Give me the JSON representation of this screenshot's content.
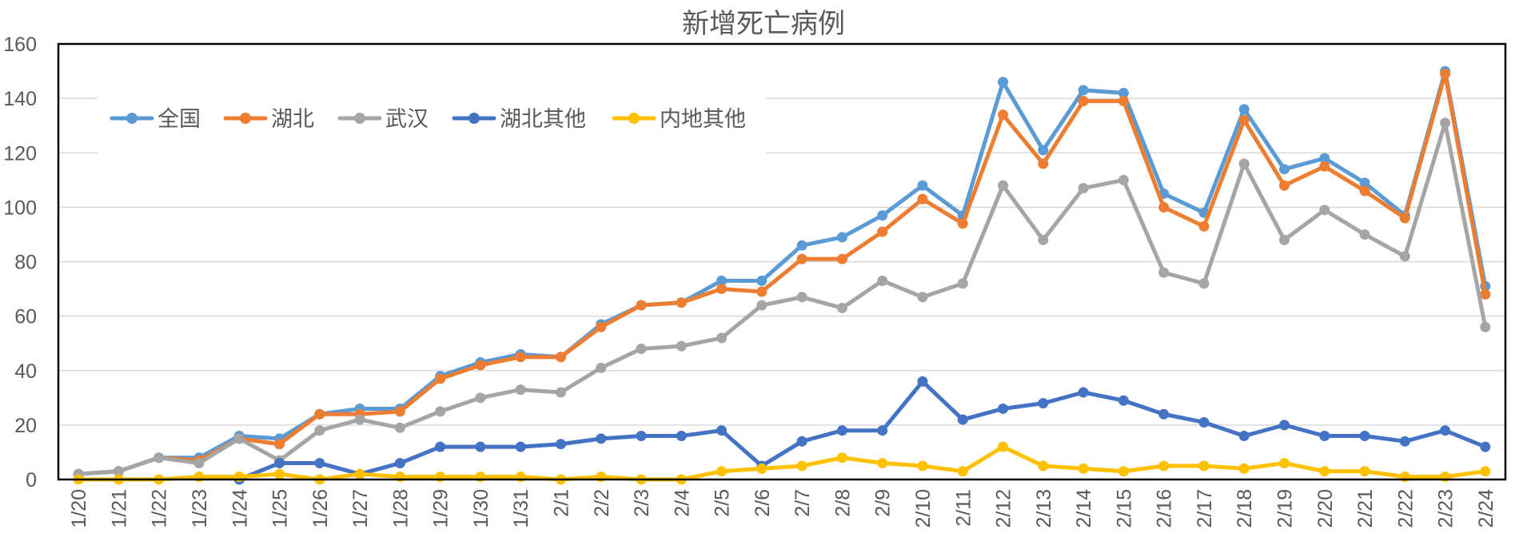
{
  "chart_data": {
    "type": "line",
    "title": "新增死亡病例",
    "xlabel": "",
    "ylabel": "",
    "ylim": [
      0,
      160
    ],
    "yticks": [
      0,
      20,
      40,
      60,
      80,
      100,
      120,
      140,
      160
    ],
    "grid": true,
    "legend_position": "top-left",
    "categories": [
      "1/20",
      "1/21",
      "1/22",
      "1/23",
      "1/24",
      "1/25",
      "1/26",
      "1/27",
      "1/28",
      "1/29",
      "1/30",
      "1/31",
      "2/1",
      "2/2",
      "2/3",
      "2/4",
      "2/5",
      "2/6",
      "2/7",
      "2/8",
      "2/9",
      "2/10",
      "2/11",
      "2/12",
      "2/13",
      "2/14",
      "2/15",
      "2/16",
      "2/17",
      "2/18",
      "2/19",
      "2/20",
      "2/21",
      "2/22",
      "2/23",
      "2/24"
    ],
    "series": [
      {
        "name": "全国",
        "color": "#5b9bd5",
        "values": [
          2,
          3,
          8,
          8,
          16,
          15,
          24,
          26,
          26,
          38,
          43,
          46,
          45,
          57,
          64,
          65,
          73,
          73,
          86,
          89,
          97,
          108,
          97,
          146,
          121,
          143,
          142,
          105,
          98,
          136,
          114,
          118,
          109,
          97,
          150,
          71
        ]
      },
      {
        "name": "湖北",
        "color": "#ed7d31",
        "values": [
          2,
          3,
          8,
          7,
          15,
          13,
          24,
          24,
          25,
          37,
          42,
          45,
          45,
          56,
          64,
          65,
          70,
          69,
          81,
          81,
          91,
          103,
          94,
          134,
          116,
          139,
          139,
          100,
          93,
          132,
          108,
          115,
          106,
          96,
          149,
          68
        ]
      },
      {
        "name": "武汉",
        "color": "#a5a5a5",
        "values": [
          2,
          3,
          8,
          6,
          15,
          7,
          18,
          22,
          19,
          25,
          30,
          33,
          32,
          41,
          48,
          49,
          52,
          64,
          67,
          63,
          73,
          67,
          72,
          108,
          88,
          107,
          110,
          76,
          72,
          116,
          88,
          99,
          90,
          82,
          131,
          56
        ]
      },
      {
        "name": "湖北其他",
        "color": "#4472c4",
        "values": [
          null,
          null,
          null,
          null,
          0,
          6,
          6,
          2,
          6,
          12,
          12,
          12,
          13,
          15,
          16,
          16,
          18,
          5,
          14,
          18,
          18,
          36,
          22,
          26,
          28,
          32,
          29,
          24,
          21,
          16,
          20,
          16,
          16,
          14,
          18,
          12
        ]
      },
      {
        "name": "内地其他",
        "color": "#ffc000",
        "values": [
          0,
          0,
          0,
          1,
          1,
          2,
          0,
          2,
          1,
          1,
          1,
          1,
          0,
          1,
          0,
          0,
          3,
          4,
          5,
          8,
          6,
          5,
          3,
          12,
          5,
          4,
          3,
          5,
          5,
          4,
          6,
          3,
          3,
          1,
          1,
          3
        ]
      }
    ]
  }
}
